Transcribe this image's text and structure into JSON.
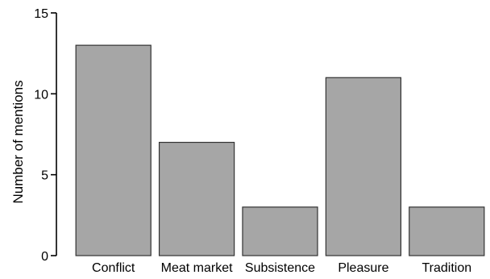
{
  "chart_data": {
    "type": "bar",
    "title": "",
    "xlabel": "",
    "ylabel": "Number of mentions",
    "categories": [
      "Conflict",
      "Meat market",
      "Subsistence",
      "Pleasure",
      "Tradition"
    ],
    "values": [
      13,
      7,
      3,
      11,
      3
    ],
    "ylim": [
      0,
      15
    ],
    "yticks": [
      0,
      5,
      10,
      15
    ],
    "grid": false,
    "legend": "none",
    "bar_color": "#a6a6a6",
    "bar_edge_color": "#333333"
  }
}
